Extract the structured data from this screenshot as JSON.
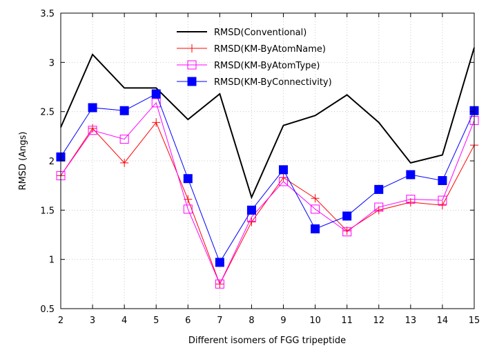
{
  "chart_data": {
    "type": "line",
    "xlabel": "Different isomers of FGG tripeptide",
    "ylabel": "RMSD (Angs)",
    "x": [
      2,
      3,
      4,
      5,
      6,
      7,
      8,
      9,
      10,
      11,
      12,
      13,
      14,
      15
    ],
    "xlim": [
      2,
      15
    ],
    "ylim": [
      0.5,
      3.5
    ],
    "xticks": [
      "2",
      "3",
      "4",
      "5",
      "6",
      "7",
      "8",
      "9",
      "10",
      "11",
      "12",
      "13",
      "14",
      "15"
    ],
    "yticks": [
      "0.5",
      "1",
      "1.5",
      "2",
      "2.5",
      "3",
      "3.5"
    ],
    "grid": true,
    "legend_position": "top-center",
    "series": [
      {
        "name": "RMSD(Conventional)",
        "color": "#000000",
        "marker": "none",
        "values": [
          2.34,
          3.08,
          2.74,
          2.74,
          2.42,
          2.68,
          1.63,
          2.36,
          2.46,
          2.67,
          2.39,
          1.98,
          2.06,
          3.15
        ]
      },
      {
        "name": "RMSD(KM-ByAtomName)",
        "color": "#ff0000",
        "marker": "plus",
        "values": [
          1.85,
          2.33,
          1.98,
          2.39,
          1.61,
          0.75,
          1.38,
          1.83,
          1.62,
          1.29,
          1.5,
          1.58,
          1.55,
          2.16
        ]
      },
      {
        "name": "RMSD(KM-ByAtomType)",
        "color": "#ff00ff",
        "marker": "open-square",
        "values": [
          1.85,
          2.31,
          2.22,
          2.59,
          1.51,
          0.75,
          1.43,
          1.79,
          1.51,
          1.28,
          1.53,
          1.61,
          1.6,
          2.41
        ]
      },
      {
        "name": "RMSD(KM-ByConnectivity)",
        "color": "#0000ff",
        "marker": "filled-square",
        "values": [
          2.04,
          2.54,
          2.51,
          2.68,
          1.82,
          0.97,
          1.5,
          1.91,
          1.31,
          1.44,
          1.71,
          1.86,
          1.8,
          2.51
        ]
      }
    ]
  }
}
